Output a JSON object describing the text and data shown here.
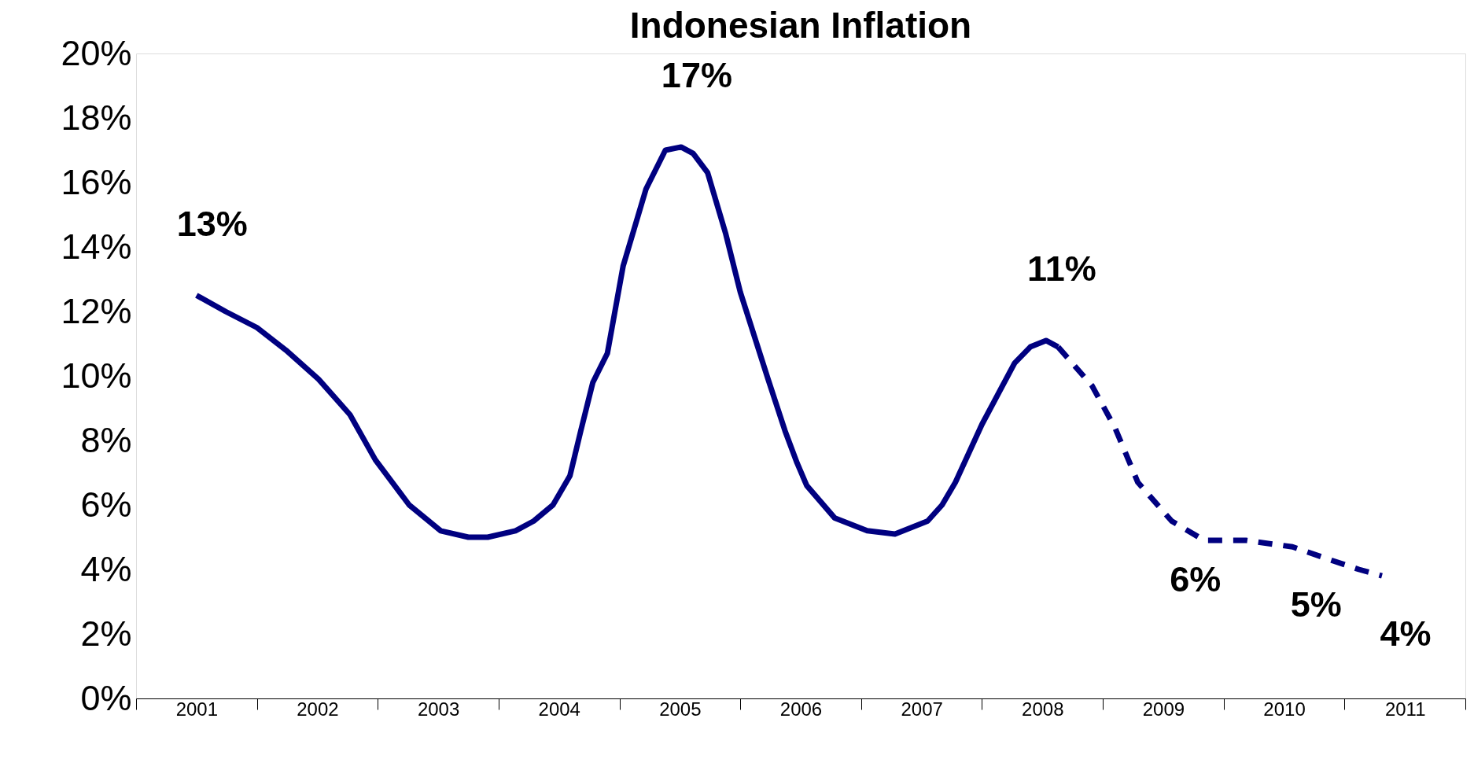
{
  "chart_data": {
    "type": "line",
    "title": "Indonesian Inflation",
    "xlim": [
      2001,
      2012
    ],
    "ylim": [
      0,
      20
    ],
    "xticks": [
      {
        "value": 2001,
        "label": null
      },
      {
        "value": 2001.5,
        "label": "2001"
      },
      {
        "value": 2002,
        "label": null
      },
      {
        "value": 2002.5,
        "label": "2002"
      },
      {
        "value": 2003,
        "label": null
      },
      {
        "value": 2003.5,
        "label": "2003"
      },
      {
        "value": 2004,
        "label": null
      },
      {
        "value": 2004.5,
        "label": "2004"
      },
      {
        "value": 2005,
        "label": null
      },
      {
        "value": 2005.5,
        "label": "2005"
      },
      {
        "value": 2006,
        "label": null
      },
      {
        "value": 2006.5,
        "label": "2006"
      },
      {
        "value": 2007,
        "label": null
      },
      {
        "value": 2007.5,
        "label": "2007"
      },
      {
        "value": 2008,
        "label": null
      },
      {
        "value": 2008.5,
        "label": "2008"
      },
      {
        "value": 2009,
        "label": null
      },
      {
        "value": 2009.5,
        "label": "2009"
      },
      {
        "value": 2010,
        "label": null
      },
      {
        "value": 2010.5,
        "label": "2010"
      },
      {
        "value": 2011,
        "label": null
      },
      {
        "value": 2011.5,
        "label": "2011"
      },
      {
        "value": 2012,
        "label": null
      }
    ],
    "yticks": [
      {
        "value": 0,
        "label": "0%"
      },
      {
        "value": 2,
        "label": "2%"
      },
      {
        "value": 4,
        "label": "4%"
      },
      {
        "value": 6,
        "label": "6%"
      },
      {
        "value": 8,
        "label": "8%"
      },
      {
        "value": 10,
        "label": "10%"
      },
      {
        "value": 12,
        "label": "12%"
      },
      {
        "value": 14,
        "label": "14%"
      },
      {
        "value": 16,
        "label": "16%"
      },
      {
        "value": 18,
        "label": "18%"
      },
      {
        "value": 20,
        "label": "20%"
      }
    ],
    "grid": false,
    "marker": "none",
    "series": [
      {
        "color": "#000080",
        "line_style": "solid",
        "x": [
          2001.5,
          2001.74,
          2002.0,
          2002.24,
          2002.51,
          2002.77,
          2002.98,
          2003.26,
          2003.52,
          2003.75,
          2003.91,
          2004.14,
          2004.29,
          2004.45,
          2004.59,
          2004.68,
          2004.78,
          2004.9,
          2005.03,
          2005.22,
          2005.38,
          2005.51,
          2005.61,
          2005.73,
          2005.88,
          2006.0,
          2006.23,
          2006.37,
          2006.47,
          2006.55,
          2006.78,
          2007.05,
          2007.28,
          2007.55,
          2007.67,
          2007.78,
          2008.0,
          2008.27,
          2008.4,
          2008.53,
          2008.63
        ],
        "values": [
          12.5,
          12.0,
          11.5,
          10.8,
          9.9,
          8.8,
          7.4,
          6.0,
          5.2,
          5.0,
          5.0,
          5.2,
          5.5,
          6.0,
          6.9,
          8.3,
          9.8,
          10.7,
          13.4,
          15.8,
          17.0,
          17.1,
          16.9,
          16.3,
          14.4,
          12.6,
          9.9,
          8.3,
          7.3,
          6.6,
          5.6,
          5.2,
          5.1,
          5.5,
          6.0,
          6.7,
          8.5,
          10.4,
          10.9,
          11.1,
          10.9
        ]
      },
      {
        "color": "#000080",
        "line_style": "dashed",
        "x": [
          2008.63,
          2008.91,
          2009.1,
          2009.29,
          2009.57,
          2009.84,
          2010.19,
          2010.57,
          2010.88,
          2011.12,
          2011.31
        ],
        "values": [
          10.9,
          9.7,
          8.4,
          6.7,
          5.5,
          4.9,
          4.9,
          4.7,
          4.3,
          4.0,
          3.8
        ]
      }
    ],
    "annotations": [
      {
        "text": "13%",
        "x": 2001.5,
        "y": 12.5
      },
      {
        "text": "17%",
        "x": 2005.51,
        "y": 17.1
      },
      {
        "text": "11%",
        "x": 2008.53,
        "y": 11.1
      },
      {
        "text": "6%",
        "x": 2009.57,
        "y": 5.5
      },
      {
        "text": "5%",
        "x": 2010.57,
        "y": 4.7
      },
      {
        "text": "4%",
        "x": 2011.31,
        "y": 3.8
      }
    ]
  }
}
